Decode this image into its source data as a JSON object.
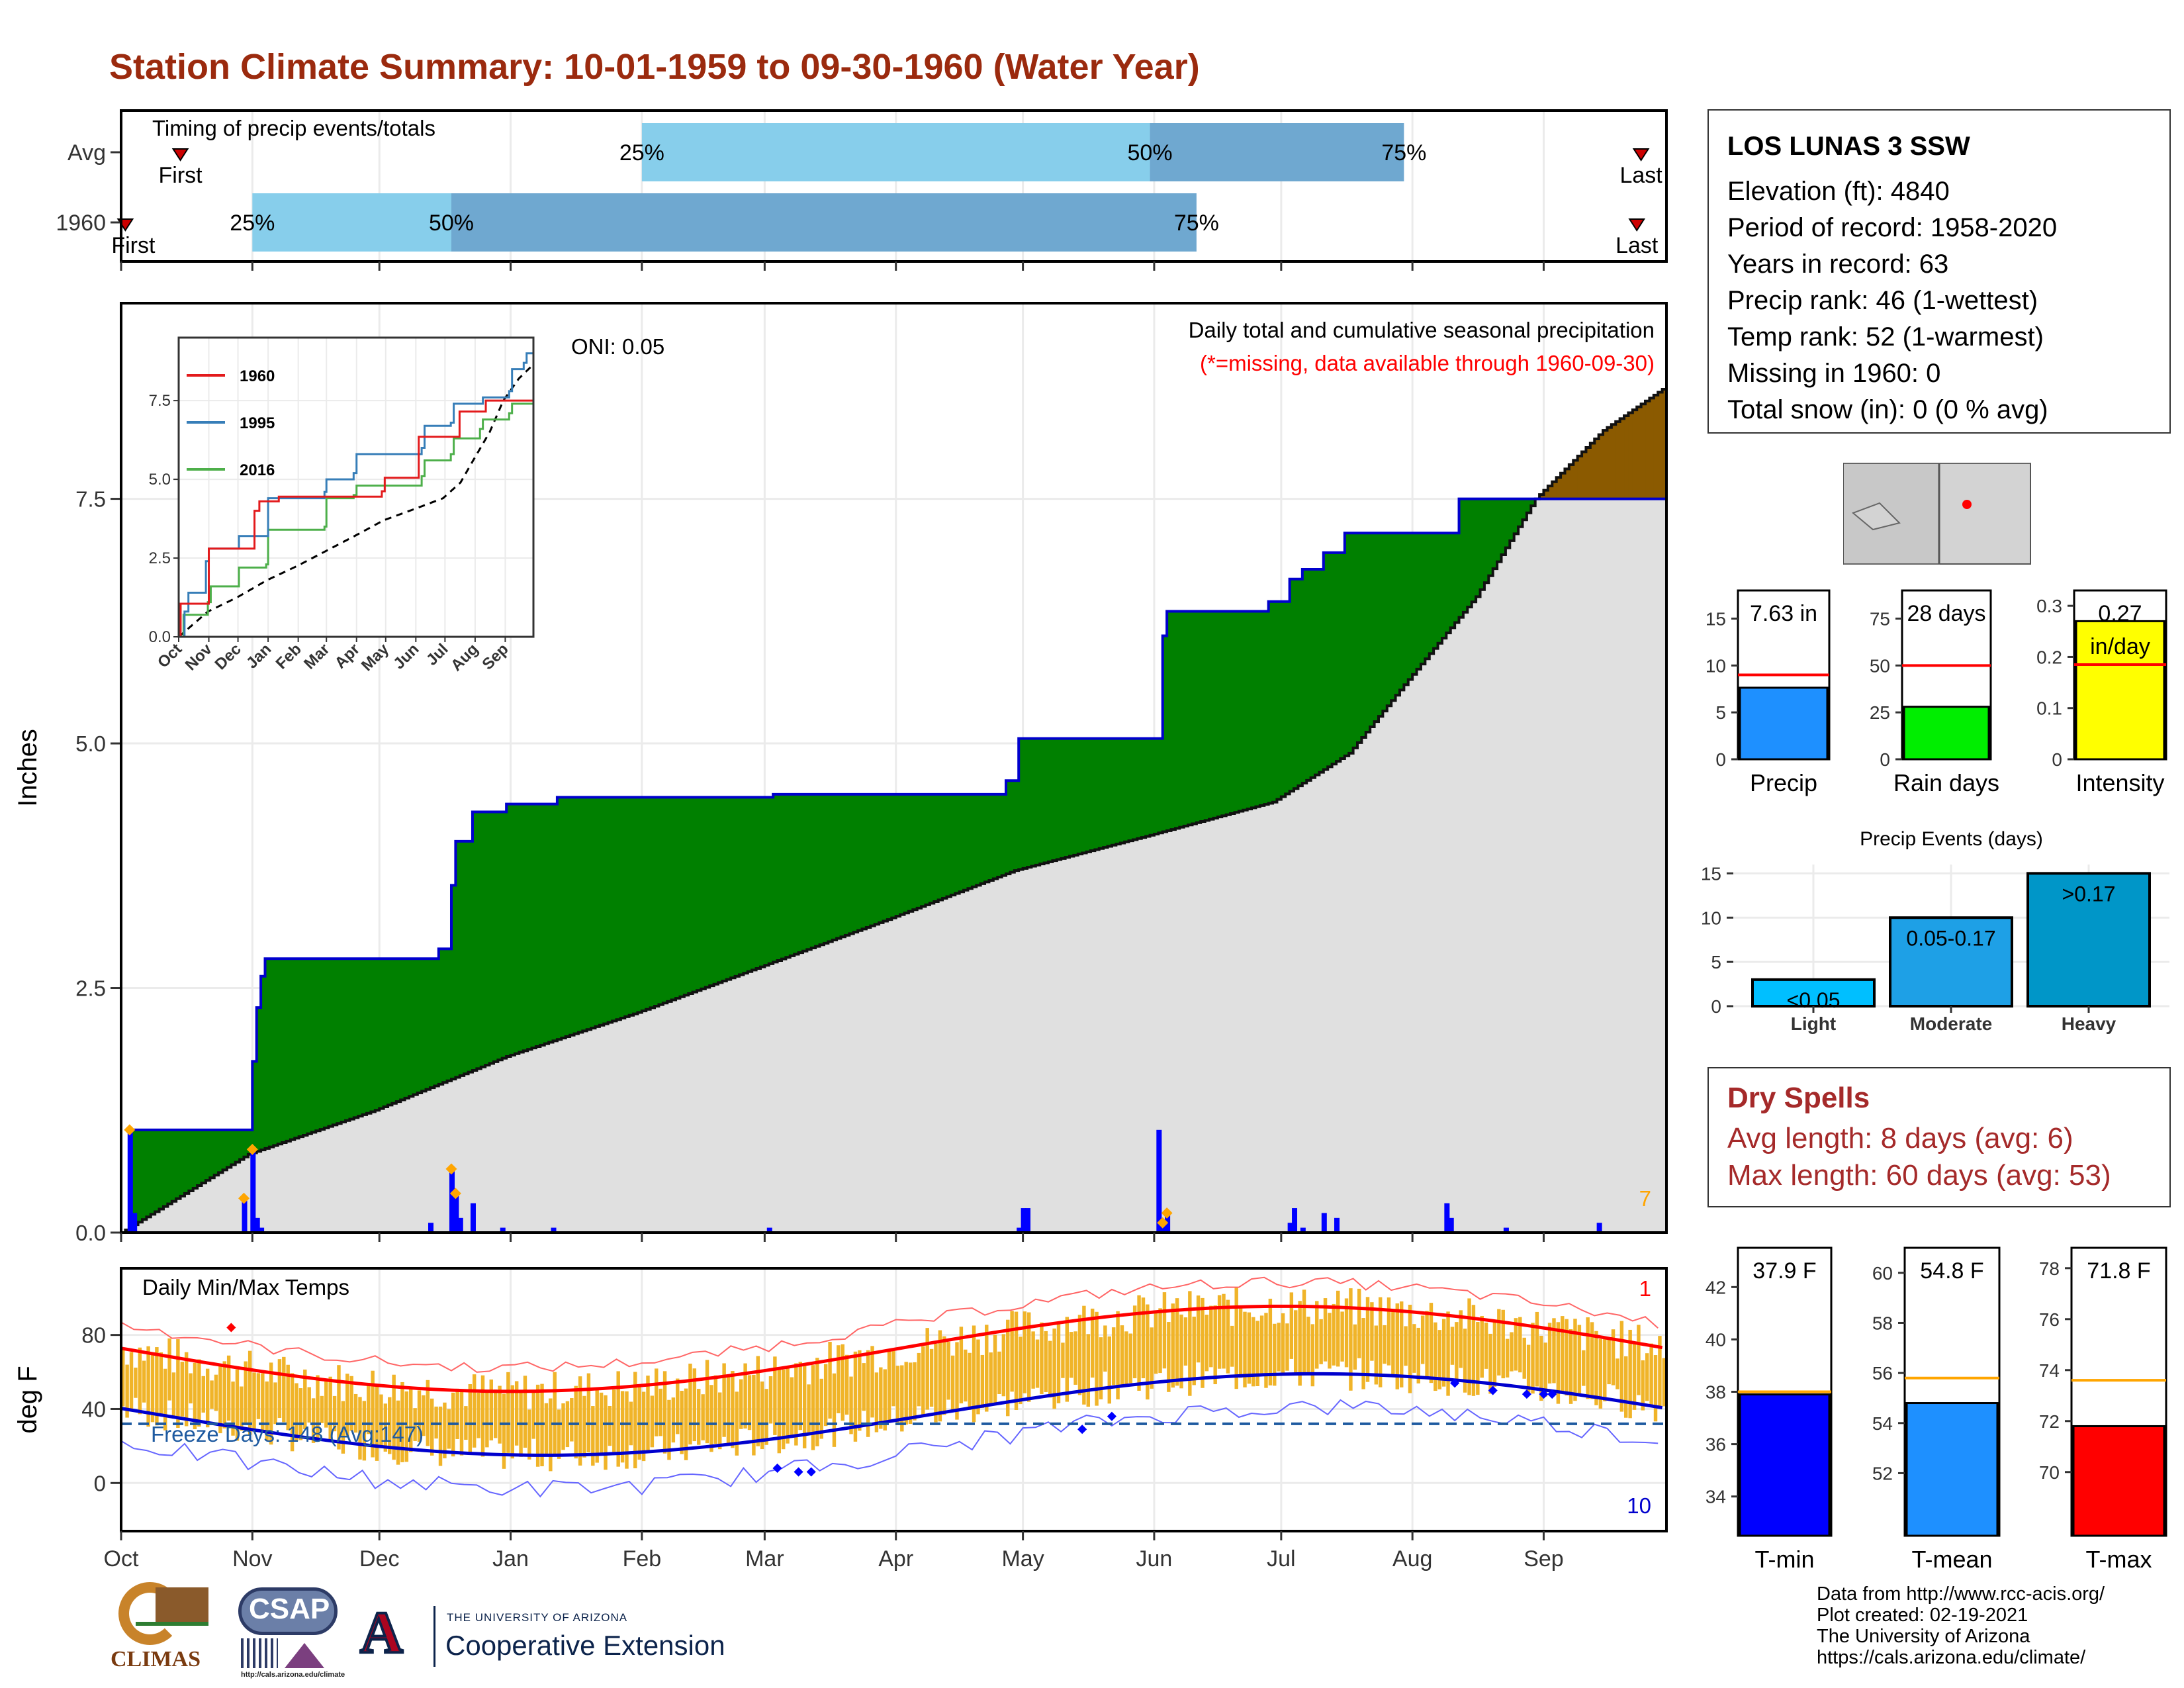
{
  "title": "Station Climate Summary: 10-01-1959 to 09-30-1960 (Water Year)",
  "timing": {
    "title": "Timing of precip events/totals",
    "rows": [
      {
        "label": "Avg",
        "q25": "2009-02-01",
        "q50": "2009-06-01",
        "q75": "2009-07-31",
        "first": "2008-10-15",
        "last": "2009-09-25",
        "first_label": "First",
        "last_label": "Last"
      },
      {
        "label": "1960",
        "q25": "2008-11-01",
        "q50": "2008-12-18",
        "q75": "2009-06-12",
        "first": "2008-10-02",
        "last": "2009-09-24",
        "first_label": "First",
        "last_label": "Last"
      }
    ],
    "pct_labels": [
      "25%",
      "50%",
      "75%"
    ],
    "colors": {
      "light": "#87ceeb",
      "dark": "#6fa8d0",
      "marker": "#cc0000"
    }
  },
  "precip": {
    "ylabel": "Inches",
    "oni": "ONI: 0.05",
    "subtitle": "Daily total and cumulative seasonal precipitation",
    "missing_note": "(*=missing, data available through 1960-09-30)",
    "corner_count": "7",
    "yticks": [
      "0.0",
      "2.5",
      "5.0",
      "7.5"
    ],
    "ylim": [
      0,
      9.5
    ],
    "cumulative_1960": [
      [
        0,
        0
      ],
      [
        2,
        1.05
      ],
      [
        30,
        1.05
      ],
      [
        31,
        1.75
      ],
      [
        32,
        2.3
      ],
      [
        33,
        2.62
      ],
      [
        34,
        2.8
      ],
      [
        74,
        2.8
      ],
      [
        75,
        2.9
      ],
      [
        77,
        2.9
      ],
      [
        78,
        3.55
      ],
      [
        79,
        4.0
      ],
      [
        82,
        4.0
      ],
      [
        83,
        4.3
      ],
      [
        90,
        4.3
      ],
      [
        91,
        4.38
      ],
      [
        102,
        4.38
      ],
      [
        103,
        4.45
      ],
      [
        153,
        4.45
      ],
      [
        154,
        4.48
      ],
      [
        208,
        4.48
      ],
      [
        209,
        4.62
      ],
      [
        211,
        4.62
      ],
      [
        212,
        5.05
      ],
      [
        245,
        5.05
      ],
      [
        246,
        6.1
      ],
      [
        247,
        6.35
      ],
      [
        270,
        6.35
      ],
      [
        271,
        6.45
      ],
      [
        275,
        6.45
      ],
      [
        276,
        6.68
      ],
      [
        278,
        6.68
      ],
      [
        279,
        6.78
      ],
      [
        283,
        6.78
      ],
      [
        284,
        6.95
      ],
      [
        288,
        6.95
      ],
      [
        289,
        7.15
      ],
      [
        315,
        7.15
      ],
      [
        316,
        7.5
      ],
      [
        365,
        7.63
      ]
    ],
    "avg_cumulative": [
      [
        0,
        0
      ],
      [
        30,
        0.8
      ],
      [
        60,
        1.25
      ],
      [
        91,
        1.8
      ],
      [
        122,
        2.25
      ],
      [
        150,
        2.7
      ],
      [
        181,
        3.2
      ],
      [
        211,
        3.7
      ],
      [
        242,
        4.05
      ],
      [
        272,
        4.4
      ],
      [
        290,
        4.9
      ],
      [
        303,
        5.6
      ],
      [
        320,
        6.5
      ],
      [
        334,
        7.5
      ],
      [
        350,
        8.2
      ],
      [
        365,
        8.65
      ]
    ],
    "daily_bars": [
      [
        2,
        1.05
      ],
      [
        3,
        0.2
      ],
      [
        29,
        0.35
      ],
      [
        31,
        0.85
      ],
      [
        32,
        0.15
      ],
      [
        33,
        0.05
      ],
      [
        73,
        0.1
      ],
      [
        78,
        0.65
      ],
      [
        79,
        0.4
      ],
      [
        80,
        0.15
      ],
      [
        83,
        0.3
      ],
      [
        90,
        0.05
      ],
      [
        102,
        0.05
      ],
      [
        153,
        0.05
      ],
      [
        212,
        0.05
      ],
      [
        213,
        0.25
      ],
      [
        214,
        0.25
      ],
      [
        245,
        1.05
      ],
      [
        246,
        0.1
      ],
      [
        247,
        0.2
      ],
      [
        276,
        0.1
      ],
      [
        277,
        0.25
      ],
      [
        279,
        0.05
      ],
      [
        284,
        0.2
      ],
      [
        287,
        0.15
      ],
      [
        313,
        0.3
      ],
      [
        314,
        0.15
      ],
      [
        327,
        0.05
      ],
      [
        349,
        0.1
      ]
    ],
    "big_days": [
      2,
      29,
      31,
      78,
      79,
      246,
      247
    ],
    "colors": {
      "surplus": "#008000",
      "deficit": "#8b5a00",
      "cumline": "#0000cd",
      "avgfill": "#e0e0e0",
      "bars": "#0000ff",
      "dots": "#ffa500",
      "count": "#ffa500",
      "note": "#ff0000"
    }
  },
  "inset": {
    "series": [
      {
        "name": "1960",
        "color": "#e31a1c"
      },
      {
        "name": "1995",
        "color": "#377eb8"
      },
      {
        "name": "2016",
        "color": "#4daf4a"
      }
    ],
    "xticks": [
      "Oct",
      "Nov",
      "Dec",
      "Jan",
      "Feb",
      "Mar",
      "Apr",
      "May",
      "Jun",
      "Jul",
      "Aug",
      "Sep"
    ],
    "yticks": [
      "0.0",
      "2.5",
      "5.0",
      "7.5"
    ],
    "ylim": [
      0,
      9.5
    ],
    "s1995": [
      [
        0,
        0
      ],
      [
        6,
        0.8
      ],
      [
        10,
        1.4
      ],
      [
        28,
        2.4
      ],
      [
        31,
        2.8
      ],
      [
        60,
        2.8
      ],
      [
        62,
        3.2
      ],
      [
        91,
        3.2
      ],
      [
        92,
        4.4
      ],
      [
        150,
        4.6
      ],
      [
        152,
        5.0
      ],
      [
        180,
        5.2
      ],
      [
        183,
        5.8
      ],
      [
        250,
        6.0
      ],
      [
        253,
        6.7
      ],
      [
        280,
        6.8
      ],
      [
        283,
        7.4
      ],
      [
        310,
        7.4
      ],
      [
        313,
        7.6
      ],
      [
        340,
        7.8
      ],
      [
        343,
        8.5
      ],
      [
        355,
        8.7
      ],
      [
        358,
        9.0
      ],
      [
        365,
        9.1
      ]
    ],
    "s2016": [
      [
        0,
        0
      ],
      [
        5,
        0.7
      ],
      [
        30,
        1.1
      ],
      [
        33,
        1.6
      ],
      [
        60,
        1.6
      ],
      [
        62,
        2.2
      ],
      [
        90,
        2.3
      ],
      [
        92,
        3.4
      ],
      [
        150,
        3.5
      ],
      [
        152,
        4.4
      ],
      [
        180,
        4.5
      ],
      [
        183,
        4.8
      ],
      [
        250,
        5.1
      ],
      [
        253,
        5.6
      ],
      [
        280,
        5.8
      ],
      [
        283,
        6.3
      ],
      [
        310,
        6.6
      ],
      [
        313,
        6.9
      ],
      [
        340,
        7.1
      ],
      [
        343,
        7.4
      ],
      [
        365,
        7.6
      ]
    ],
    "s1960": [
      [
        0,
        0
      ],
      [
        2,
        1.05
      ],
      [
        30,
        1.05
      ],
      [
        31,
        2.8
      ],
      [
        74,
        2.8
      ],
      [
        78,
        4.0
      ],
      [
        83,
        4.3
      ],
      [
        103,
        4.45
      ],
      [
        209,
        4.62
      ],
      [
        212,
        5.05
      ],
      [
        245,
        5.05
      ],
      [
        247,
        6.35
      ],
      [
        270,
        6.35
      ],
      [
        289,
        7.15
      ],
      [
        315,
        7.15
      ],
      [
        316,
        7.5
      ],
      [
        365,
        7.63
      ]
    ]
  },
  "months": [
    "Oct",
    "Nov",
    "Dec",
    "Jan",
    "Feb",
    "Mar",
    "Apr",
    "May",
    "Jun",
    "Jul",
    "Aug",
    "Sep"
  ],
  "month_days": [
    0,
    31,
    61,
    92,
    123,
    152,
    183,
    213,
    244,
    274,
    305,
    336
  ],
  "temps": {
    "title": "Daily Min/Max Temps",
    "ylabel": "deg F",
    "yticks": [
      "0",
      "40",
      "80"
    ],
    "ylim": [
      -26,
      116
    ],
    "freeze_label": "Freeze Days: 148 (Avg:147)",
    "freeze_line": 32,
    "corner_top": "1",
    "corner_bottom": "10",
    "colors": {
      "bars": "#f0b429",
      "avg_max": "#ff0000",
      "avg_min": "#0000cd",
      "rec_max": "#ff6666",
      "rec_min": "#6666ff",
      "freeze": "#1e5aa0"
    }
  },
  "station": {
    "name": "LOS LUNAS 3 SSW",
    "lines": [
      "Elevation (ft): 4840",
      "Period of record: 1958-2020",
      "Years in record: 63",
      "Precip rank: 46 (1-wettest)",
      "Temp rank: 52 (1-warmest)",
      "Missing in 1960: 0",
      "Total snow (in): 0 (0 % avg)"
    ]
  },
  "mini_bars": [
    {
      "label": "Precip",
      "value_label": "7.63 in",
      "value": 7.63,
      "avg": 9.0,
      "ymax": 18,
      "ticks": [
        0,
        5,
        10,
        15
      ],
      "color": "#1e90ff"
    },
    {
      "label": "Rain days",
      "value_label": "28 days",
      "value": 28,
      "avg": 50,
      "ymax": 90,
      "ticks": [
        0,
        25,
        50,
        75
      ],
      "color": "#00ee00"
    },
    {
      "label": "Intensity",
      "value_label": "0.27\nin/day",
      "value": 0.27,
      "avg": 0.185,
      "ymax": 0.33,
      "ticks": [
        0.0,
        0.1,
        0.2,
        0.3
      ],
      "color": "#ffff00"
    }
  ],
  "events": {
    "title": "Precip Events (days)",
    "categories": [
      "Light",
      "Moderate",
      "Heavy"
    ],
    "values": [
      3,
      10,
      15
    ],
    "labels": [
      "<0.05",
      "0.05-0.17",
      ">0.17"
    ],
    "colors": [
      "#00bfff",
      "#1ea0e6",
      "#0096c8"
    ],
    "ticks": [
      0,
      5,
      10,
      15
    ],
    "ymax": 16
  },
  "dry_spells": {
    "title": "Dry Spells",
    "lines": [
      "Avg length: 8 days (avg: 6)",
      "Max length: 60 days (avg: 53)"
    ]
  },
  "temp_bars": [
    {
      "label": "T-min",
      "value_label": "37.9 F",
      "value": 37.9,
      "avg": 38.0,
      "ymin": 32.5,
      "ymax": 43.5,
      "ticks": [
        34,
        36,
        38,
        40,
        42
      ],
      "color": "#0000ff"
    },
    {
      "label": "T-mean",
      "value_label": "54.8 F",
      "value": 54.8,
      "avg": 55.8,
      "ymin": 49.5,
      "ymax": 61,
      "ticks": [
        52,
        54,
        56,
        58,
        60
      ],
      "color": "#1e90ff"
    },
    {
      "label": "T-max",
      "value_label": "71.8 F",
      "value": 71.8,
      "avg": 73.6,
      "ymin": 67.5,
      "ymax": 78.8,
      "ticks": [
        70,
        72,
        74,
        76,
        78
      ],
      "color": "#ff0000"
    }
  ],
  "credits": {
    "lines": [
      "Data from http://www.rcc-acis.org/",
      "Plot created: 02-19-2021",
      "The University of Arizona",
      "https://cals.arizona.edu/climate/"
    ],
    "climas": "CLIMAS",
    "csap": "CSAP",
    "csap_url": "http://cals.arizona.edu/climate",
    "ua_small": "THE UNIVERSITY OF ARIZONA",
    "ua_big": "Cooperative Extension"
  }
}
